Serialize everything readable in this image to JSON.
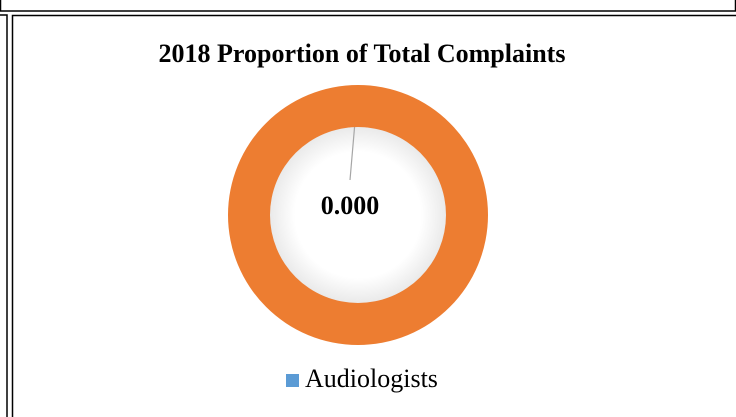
{
  "chart_data": {
    "type": "doughnut",
    "title": "2018 Proportion of Total Complaints",
    "categories": [
      "Audiologists",
      null
    ],
    "values": [
      0,
      1
    ],
    "value_labels": [
      "0.000",
      null
    ],
    "colors": [
      "#5b9bd5",
      "#ed7d31"
    ],
    "legend": "bottom"
  }
}
